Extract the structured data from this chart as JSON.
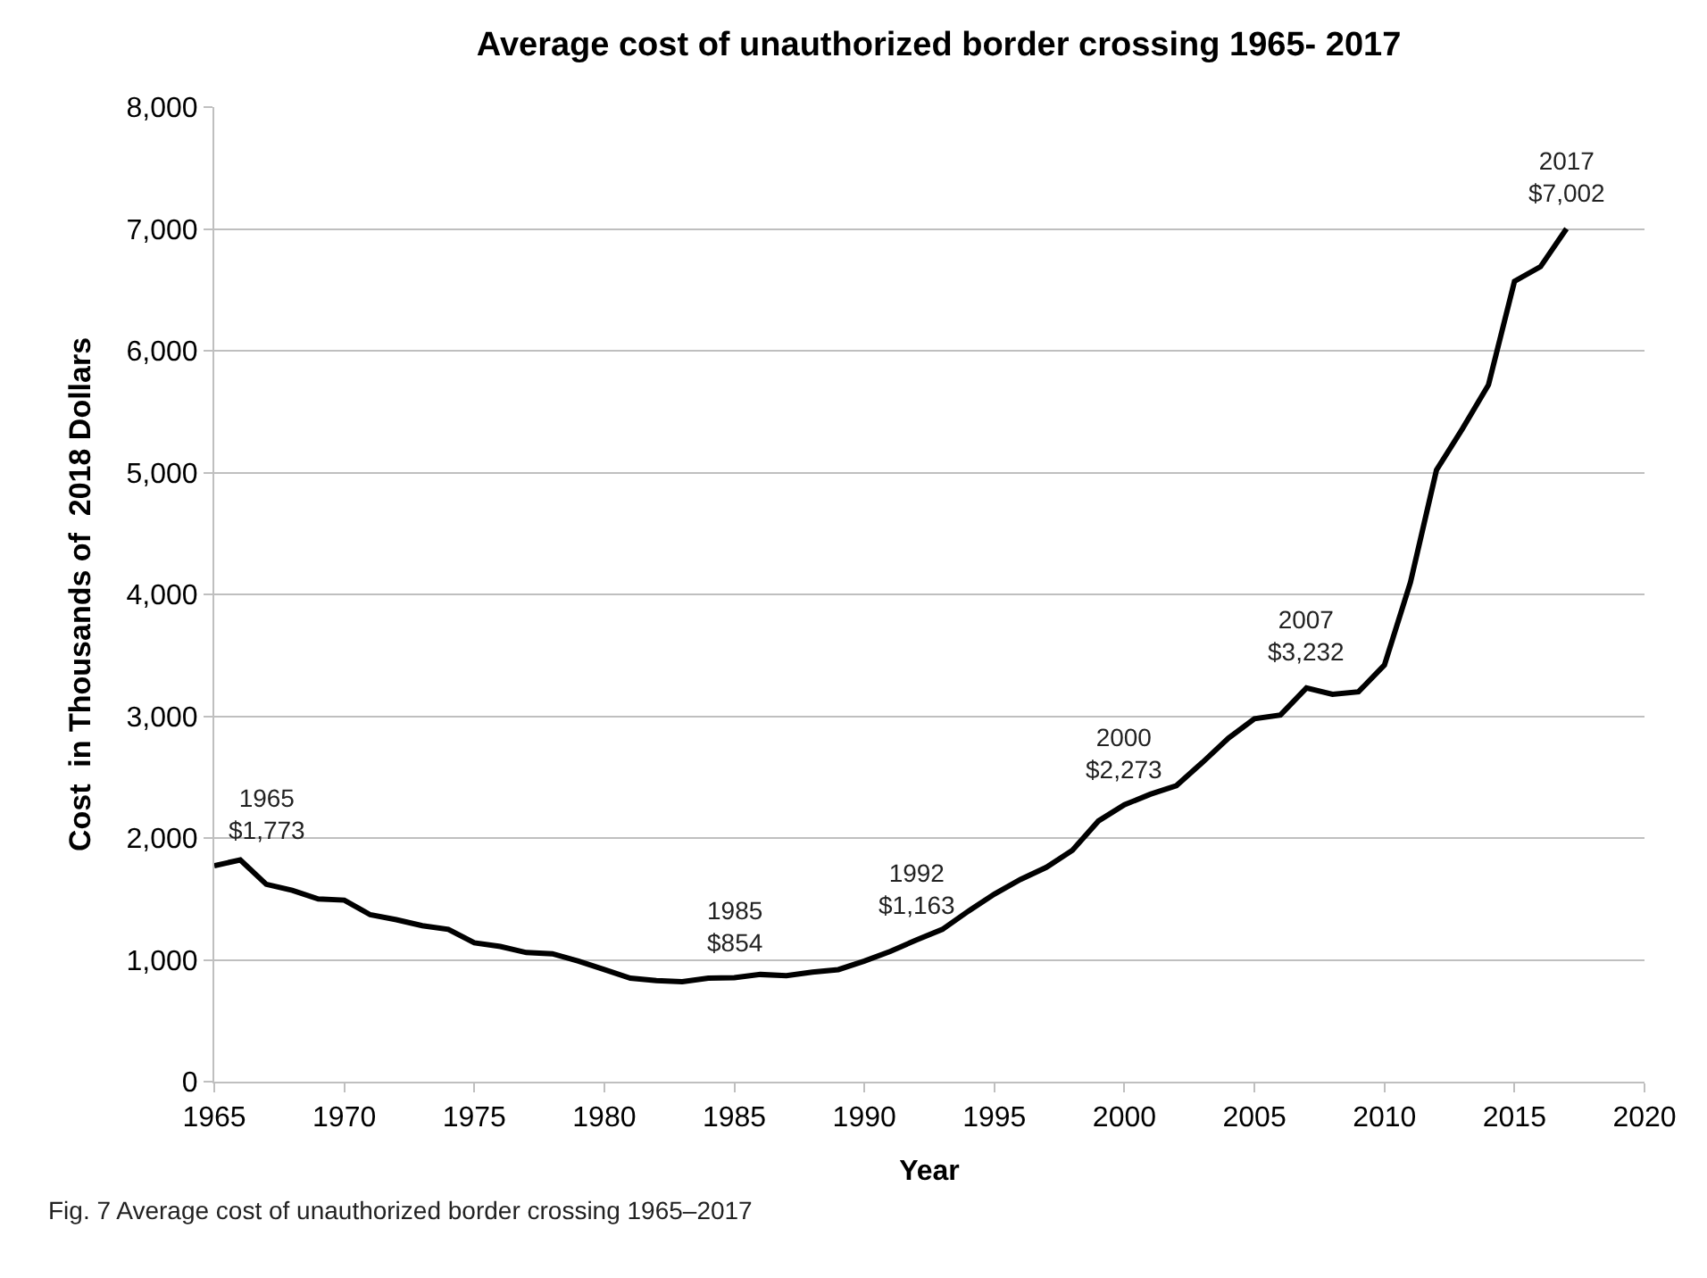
{
  "chart_data": {
    "type": "line",
    "title": "Average cost of unauthorized border crossing 1965- 2017",
    "xlabel": "Year",
    "ylabel": "Cost  in Thousands of  2018 Dollars",
    "x": [
      1965,
      1966,
      1967,
      1968,
      1969,
      1970,
      1971,
      1972,
      1973,
      1974,
      1975,
      1976,
      1977,
      1978,
      1979,
      1980,
      1981,
      1982,
      1983,
      1984,
      1985,
      1986,
      1987,
      1988,
      1989,
      1990,
      1991,
      1992,
      1993,
      1994,
      1995,
      1996,
      1997,
      1998,
      1999,
      2000,
      2001,
      2002,
      2003,
      2004,
      2005,
      2006,
      2007,
      2008,
      2009,
      2010,
      2011,
      2012,
      2013,
      2014,
      2015,
      2016,
      2017
    ],
    "series": [
      {
        "color": "#000000",
        "values": [
          1773,
          1820,
          1620,
          1570,
          1500,
          1490,
          1370,
          1330,
          1280,
          1250,
          1140,
          1110,
          1060,
          1050,
          990,
          920,
          850,
          830,
          820,
          850,
          854,
          880,
          870,
          900,
          920,
          990,
          1070,
          1163,
          1250,
          1400,
          1540,
          1660,
          1760,
          1900,
          2140,
          2273,
          2360,
          2430,
          2620,
          2820,
          2980,
          3010,
          3232,
          3180,
          3200,
          3420,
          4100,
          5020,
          5360,
          5720,
          6570,
          6690,
          7002
        ]
      }
    ],
    "xlim": [
      1965,
      2020
    ],
    "xticks": [
      1965,
      1970,
      1975,
      1980,
      1985,
      1990,
      1995,
      2000,
      2005,
      2010,
      2015,
      2020
    ],
    "ylim": [
      0,
      8000
    ],
    "yticks": [
      0,
      {
        "value": 1000,
        "label": "1,000"
      },
      {
        "value": 2000,
        "label": "2,000"
      },
      {
        "value": 3000,
        "label": "3,000"
      },
      {
        "value": 4000,
        "label": "4,000"
      },
      {
        "value": 5000,
        "label": "5,000"
      },
      {
        "value": 6000,
        "label": "6,000"
      },
      {
        "value": 7000,
        "label": "7,000"
      },
      {
        "value": 8000,
        "label": "8,000"
      }
    ],
    "grid": "y",
    "marker": "none",
    "line_style": "solid",
    "annotations": [
      {
        "text": "1965\n$1,773",
        "x": 1965,
        "y": 1773
      },
      {
        "text": "1985\n$854",
        "x": 1985,
        "y": 854
      },
      {
        "text": "1992\n$1,163",
        "x": 1992,
        "y": 1163
      },
      {
        "text": "2000\n$2,273",
        "x": 2000,
        "y": 2273
      },
      {
        "text": "2007\n$3,232",
        "x": 2007,
        "y": 3232
      },
      {
        "text": "2017\n$7,002",
        "x": 2017,
        "y": 7002
      },
      "Fig. 7 Average cost of unauthorized border crossing 1965–2017"
    ]
  }
}
